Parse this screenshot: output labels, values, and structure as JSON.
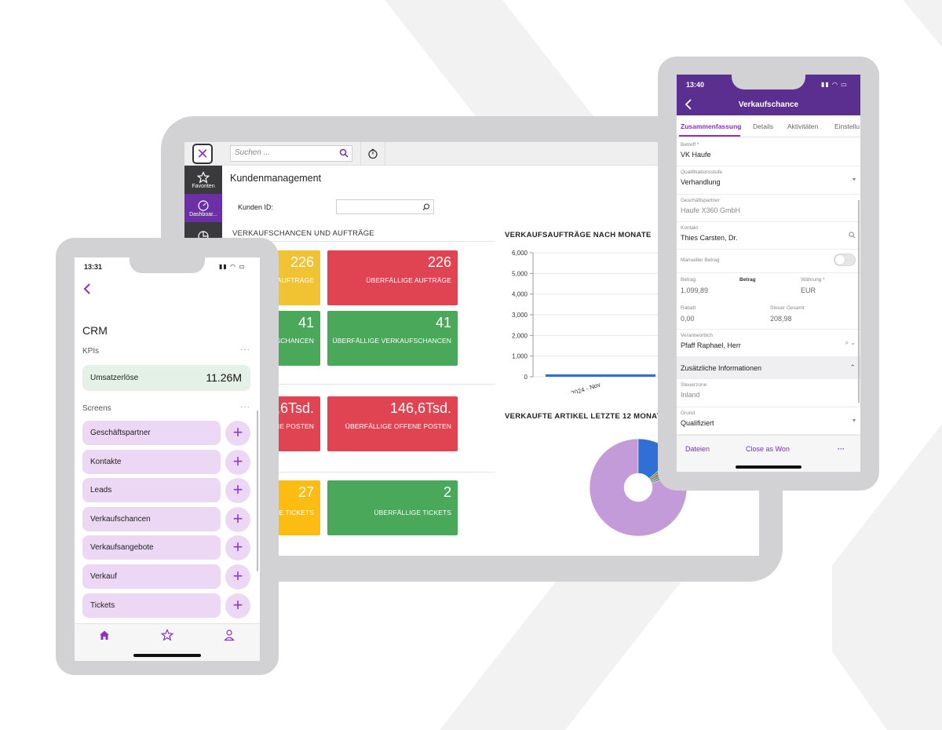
{
  "colors": {
    "brand_purple": "#5a2f8f",
    "accent_purple": "#8b2fc9",
    "kpi_yellow": "#f1c232",
    "kpi_red": "#e04452",
    "kpi_green": "#49a85a",
    "kpi_amber": "#fcbc11",
    "screen_tile": "#ecd8f4",
    "kpi_tile": "#e4f1e6"
  },
  "tablet": {
    "search_placeholder": "Suchen ...",
    "sidebar": [
      {
        "label": "Favoriten",
        "icon": "star-icon"
      },
      {
        "label": "Dashboar...",
        "icon": "dashboard-gauge-icon"
      },
      {
        "label": "",
        "icon": "pie-chart-icon"
      }
    ],
    "page_title": "Kundenmanagement",
    "customer_id_label": "Kunden ID:",
    "section_orders": "VERKAUFSCHANCEN UND AUFTRÄGE",
    "section_chart": "VERKAUFSAUFTRÄGE NACH MONATE",
    "section_donut": "VERKAUFTE ARTIKEL LETZTE 12 MONATE",
    "kpis": [
      {
        "value": "226",
        "label": ") LIEFERNDE AUFTRÄGE",
        "color": "yellow"
      },
      {
        "value": "226",
        "label": "ÜBERFÄLLIGE AUFTRÄGE",
        "color": "red"
      },
      {
        "value": "41",
        "label": "E VERKAUFSCHANCEN",
        "color": "green"
      },
      {
        "value": "41",
        "label": "ÜBERFÄLLIGE VERKAUFSCHANCEN",
        "color": "green"
      },
      {
        "value": "146,6Tsd.",
        "label": "OFFENE POSTEN",
        "color": "red"
      },
      {
        "value": "146,6Tsd.",
        "label": "ÜBERFÄLLIGE OFFENE POSTEN",
        "color": "red"
      },
      {
        "value": "27",
        "label": "OFFENE TICKETS",
        "color": "amber"
      },
      {
        "value": "2",
        "label": "ÜBERFÄLLIGE TICKETS",
        "color": "green"
      }
    ]
  },
  "chart_data": [
    {
      "type": "bar",
      "title": "VERKAUFSAUFTRÄGE NACH MONATE",
      "categories": [
        "2024 - Nov"
      ],
      "values": [
        120
      ],
      "y_ticks": [
        "0",
        "1,000",
        "2,000",
        "3,000",
        "4,000",
        "5,000",
        "6,000"
      ],
      "ylim": [
        0,
        6000
      ],
      "grid": true,
      "bar_color": "#2f6fd6"
    },
    {
      "type": "pie",
      "title": "VERKAUFTE ARTIKEL LETZTE 12 MONATE",
      "donut": true,
      "slices": [
        {
          "value": 80,
          "color": "#c39bd9"
        },
        {
          "value": 14,
          "color": "#2f6fd6"
        },
        {
          "value": 1.5,
          "color": "#4caf50"
        },
        {
          "value": 1.5,
          "color": "#e04452"
        },
        {
          "value": 1.5,
          "color": "#26a69a"
        },
        {
          "value": 1.5,
          "color": "#888888"
        }
      ]
    }
  ],
  "phone_left": {
    "time": "13:31",
    "title": "CRM",
    "kpis_heading": "KPIs",
    "kpi": {
      "label": "Umsatzerlöse",
      "value": "11.26M"
    },
    "screens_heading": "Screens",
    "more": "···",
    "screens": [
      "Geschäftspartner",
      "Kontakte",
      "Leads",
      "Verkaufschancen",
      "Verkaufsangebote",
      "Verkauf",
      "Tickets"
    ],
    "plus": "+",
    "tabs": [
      "home-icon",
      "star-icon",
      "person-icon"
    ]
  },
  "phone_right": {
    "time": "13:40",
    "title": "Verkaufschance",
    "tabs": [
      "Zusammenfassung",
      "Details",
      "Aktivitäten",
      "Einstellu"
    ],
    "fields": {
      "betreff": {
        "label": "Betreff *",
        "value": "VK Haufe"
      },
      "qualifikation": {
        "label": "Qualifikationsstufe",
        "value": "Verhandlung"
      },
      "partner": {
        "label": "Geschäftspartner",
        "value": "Haufe X360 GmbH"
      },
      "kontakt": {
        "label": "Kontakt",
        "value": "Thies Carsten, Dr."
      },
      "manuell": {
        "label": "Manueller Betrag"
      },
      "betrag": {
        "label": "Betrag",
        "value": "1.099,89"
      },
      "betrag2": {
        "label": "Betrag"
      },
      "waehrung": {
        "label": "Währung *",
        "value": "EUR"
      },
      "rabatt": {
        "label": "Rabatt",
        "value": "0,00"
      },
      "steuer": {
        "label": "Steuer Gesamt",
        "value": "208,98"
      },
      "verantwortlich": {
        "label": "Verantwortlich",
        "value": "Pfaff Raphael, Herr"
      },
      "steuerzone": {
        "label": "Steuerzone",
        "value": "Inland"
      },
      "grund": {
        "label": "Grund",
        "value": "Qualifiziert"
      }
    },
    "section": "Zusätzliche Informationen",
    "footer": [
      "Dateien",
      "Close as Won",
      "···"
    ]
  }
}
